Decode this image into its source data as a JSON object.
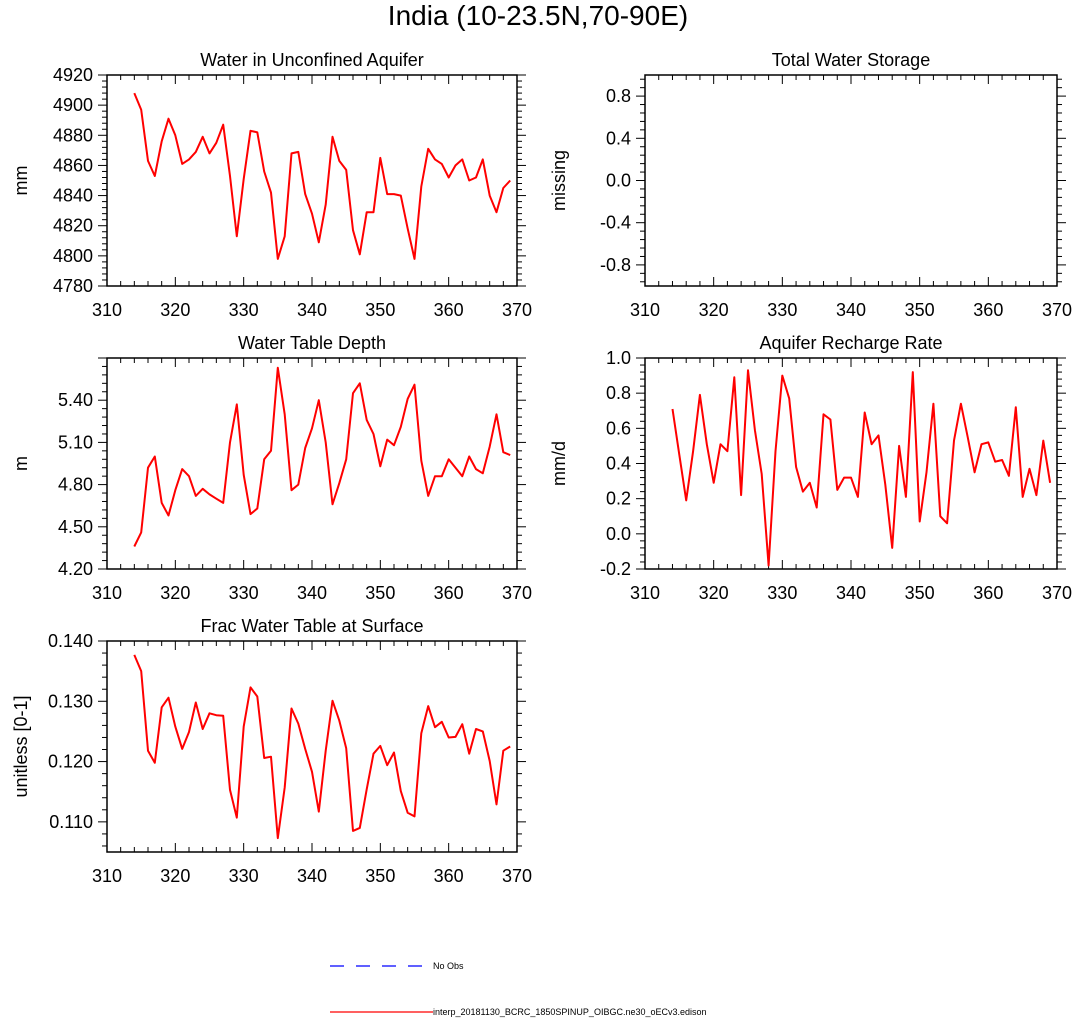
{
  "page_title": "India (10-23.5N,70-90E)",
  "legend": {
    "obs_label": "No Obs",
    "obs_color": "#0000ff",
    "model_label": "interp_20181130_BCRC_1850SPINUP_OIBGC.ne30_oECv3.edison",
    "model_color": "#ff0000"
  },
  "chart_data": [
    {
      "type": "line",
      "title": "Water in Unconfined Aquifer",
      "ylabel": "mm",
      "xlabel": "",
      "xlim": [
        310,
        370
      ],
      "ylim": [
        4780,
        4920
      ],
      "xticks": [
        310,
        320,
        330,
        340,
        350,
        360,
        370
      ],
      "yticks": [
        4780,
        4800,
        4820,
        4840,
        4860,
        4880,
        4900,
        4920
      ],
      "ytick_labels": [
        "4780",
        "4800",
        "4820",
        "4840",
        "4860",
        "4880",
        "4900",
        "4920"
      ],
      "x_start": 314,
      "series": [
        {
          "name": "interp_20181130_BCRC_1850SPINUP_OIBGC.ne30_oECv3.edison",
          "values": [
            4908,
            4897,
            4863,
            4853,
            4876,
            4891,
            4880,
            4861,
            4864,
            4869,
            4879,
            4868,
            4875,
            4887,
            4853,
            4813,
            4851,
            4883,
            4882,
            4856,
            4842,
            4798,
            4813,
            4868,
            4869,
            4841,
            4828,
            4809,
            4834,
            4879,
            4863,
            4857,
            4817,
            4801,
            4829,
            4829,
            4865,
            4841,
            4841,
            4840,
            4818,
            4798,
            4846,
            4871,
            4864,
            4861,
            4852,
            4860,
            4864,
            4850,
            4852,
            4864,
            4840,
            4829,
            4845,
            4850
          ]
        }
      ]
    },
    {
      "type": "line",
      "title": "Total Water Storage",
      "ylabel": "missing",
      "xlabel": "",
      "xlim": [
        310,
        370
      ],
      "ylim": [
        -1.0,
        1.0
      ],
      "xticks": [
        310,
        320,
        330,
        340,
        350,
        360,
        370
      ],
      "yticks": [
        -0.8,
        -0.4,
        0.0,
        0.4,
        0.8
      ],
      "ytick_labels": [
        "-0.8",
        "-0.4",
        "0.0",
        "0.4",
        "0.8"
      ],
      "x_start": 314,
      "series": []
    },
    {
      "type": "line",
      "title": "Water Table Depth",
      "ylabel": "m",
      "xlabel": "",
      "xlim": [
        310,
        370
      ],
      "ylim": [
        4.2,
        5.7
      ],
      "xticks": [
        310,
        320,
        330,
        340,
        350,
        360,
        370
      ],
      "yticks": [
        4.2,
        4.5,
        4.8,
        5.1,
        5.4
      ],
      "ytick_labels": [
        "4.20",
        "4.50",
        "4.80",
        "5.10",
        "5.40"
      ],
      "x_start": 314,
      "series": [
        {
          "name": "interp_20181130_BCRC_1850SPINUP_OIBGC.ne30_oECv3.edison",
          "values": [
            4.36,
            4.46,
            4.92,
            5.0,
            4.67,
            4.58,
            4.76,
            4.91,
            4.86,
            4.72,
            4.77,
            4.73,
            4.7,
            4.67,
            5.1,
            5.37,
            4.87,
            4.59,
            4.63,
            4.98,
            5.04,
            5.63,
            5.3,
            4.76,
            4.8,
            5.06,
            5.2,
            5.4,
            5.1,
            4.66,
            4.81,
            4.98,
            5.45,
            5.52,
            5.26,
            5.16,
            4.93,
            5.12,
            5.08,
            5.21,
            5.41,
            5.51,
            4.97,
            4.72,
            4.86,
            4.86,
            4.98,
            4.92,
            4.86,
            5.0,
            4.91,
            4.88,
            5.07,
            5.3,
            5.03,
            5.01
          ]
        }
      ]
    },
    {
      "type": "line",
      "title": "Aquifer Recharge Rate",
      "ylabel": "mm/d",
      "xlabel": "",
      "xlim": [
        310,
        370
      ],
      "ylim": [
        -0.2,
        1.0
      ],
      "xticks": [
        310,
        320,
        330,
        340,
        350,
        360,
        370
      ],
      "yticks": [
        -0.2,
        0.0,
        0.2,
        0.4,
        0.6,
        0.8,
        1.0
      ],
      "ytick_labels": [
        "-0.2",
        "0.0",
        "0.2",
        "0.4",
        "0.6",
        "0.8",
        "1.0"
      ],
      "x_start": 314,
      "series": [
        {
          "name": "interp_20181130_BCRC_1850SPINUP_OIBGC.ne30_oECv3.edison",
          "values": [
            0.71,
            0.45,
            0.19,
            0.47,
            0.79,
            0.51,
            0.29,
            0.51,
            0.47,
            0.89,
            0.22,
            0.93,
            0.59,
            0.34,
            -0.18,
            0.47,
            0.9,
            0.77,
            0.38,
            0.24,
            0.29,
            0.15,
            0.68,
            0.65,
            0.25,
            0.32,
            0.32,
            0.21,
            0.69,
            0.51,
            0.56,
            0.28,
            -0.08,
            0.5,
            0.21,
            0.92,
            0.07,
            0.35,
            0.74,
            0.1,
            0.06,
            0.53,
            0.74,
            0.55,
            0.35,
            0.51,
            0.52,
            0.41,
            0.42,
            0.33,
            0.72,
            0.21,
            0.37,
            0.22,
            0.53,
            0.29
          ]
        }
      ]
    },
    {
      "type": "line",
      "title": "Frac Water Table at Surface",
      "ylabel": "unitless [0-1]",
      "xlabel": "",
      "xlim": [
        310,
        370
      ],
      "ylim": [
        0.105,
        0.14
      ],
      "xticks": [
        310,
        320,
        330,
        340,
        350,
        360,
        370
      ],
      "yticks": [
        0.11,
        0.12,
        0.13,
        0.14
      ],
      "ytick_labels": [
        "0.110",
        "0.120",
        "0.130",
        "0.140"
      ],
      "x_start": 314,
      "series": [
        {
          "name": "interp_20181130_BCRC_1850SPINUP_OIBGC.ne30_oECv3.edison",
          "values": [
            0.1377,
            0.135,
            0.1218,
            0.1198,
            0.129,
            0.1306,
            0.1258,
            0.1221,
            0.1249,
            0.1298,
            0.1254,
            0.128,
            0.1277,
            0.1276,
            0.1153,
            0.1107,
            0.1258,
            0.1323,
            0.1308,
            0.1206,
            0.1208,
            0.1073,
            0.1157,
            0.1288,
            0.1263,
            0.1221,
            0.1183,
            0.1117,
            0.1218,
            0.1301,
            0.1268,
            0.1222,
            0.1085,
            0.109,
            0.1154,
            0.1213,
            0.1226,
            0.1194,
            0.1215,
            0.1151,
            0.1115,
            0.1109,
            0.1247,
            0.1292,
            0.1257,
            0.1266,
            0.124,
            0.1241,
            0.1262,
            0.1213,
            0.1254,
            0.125,
            0.1201,
            0.1129,
            0.1218,
            0.1225
          ]
        }
      ]
    }
  ]
}
